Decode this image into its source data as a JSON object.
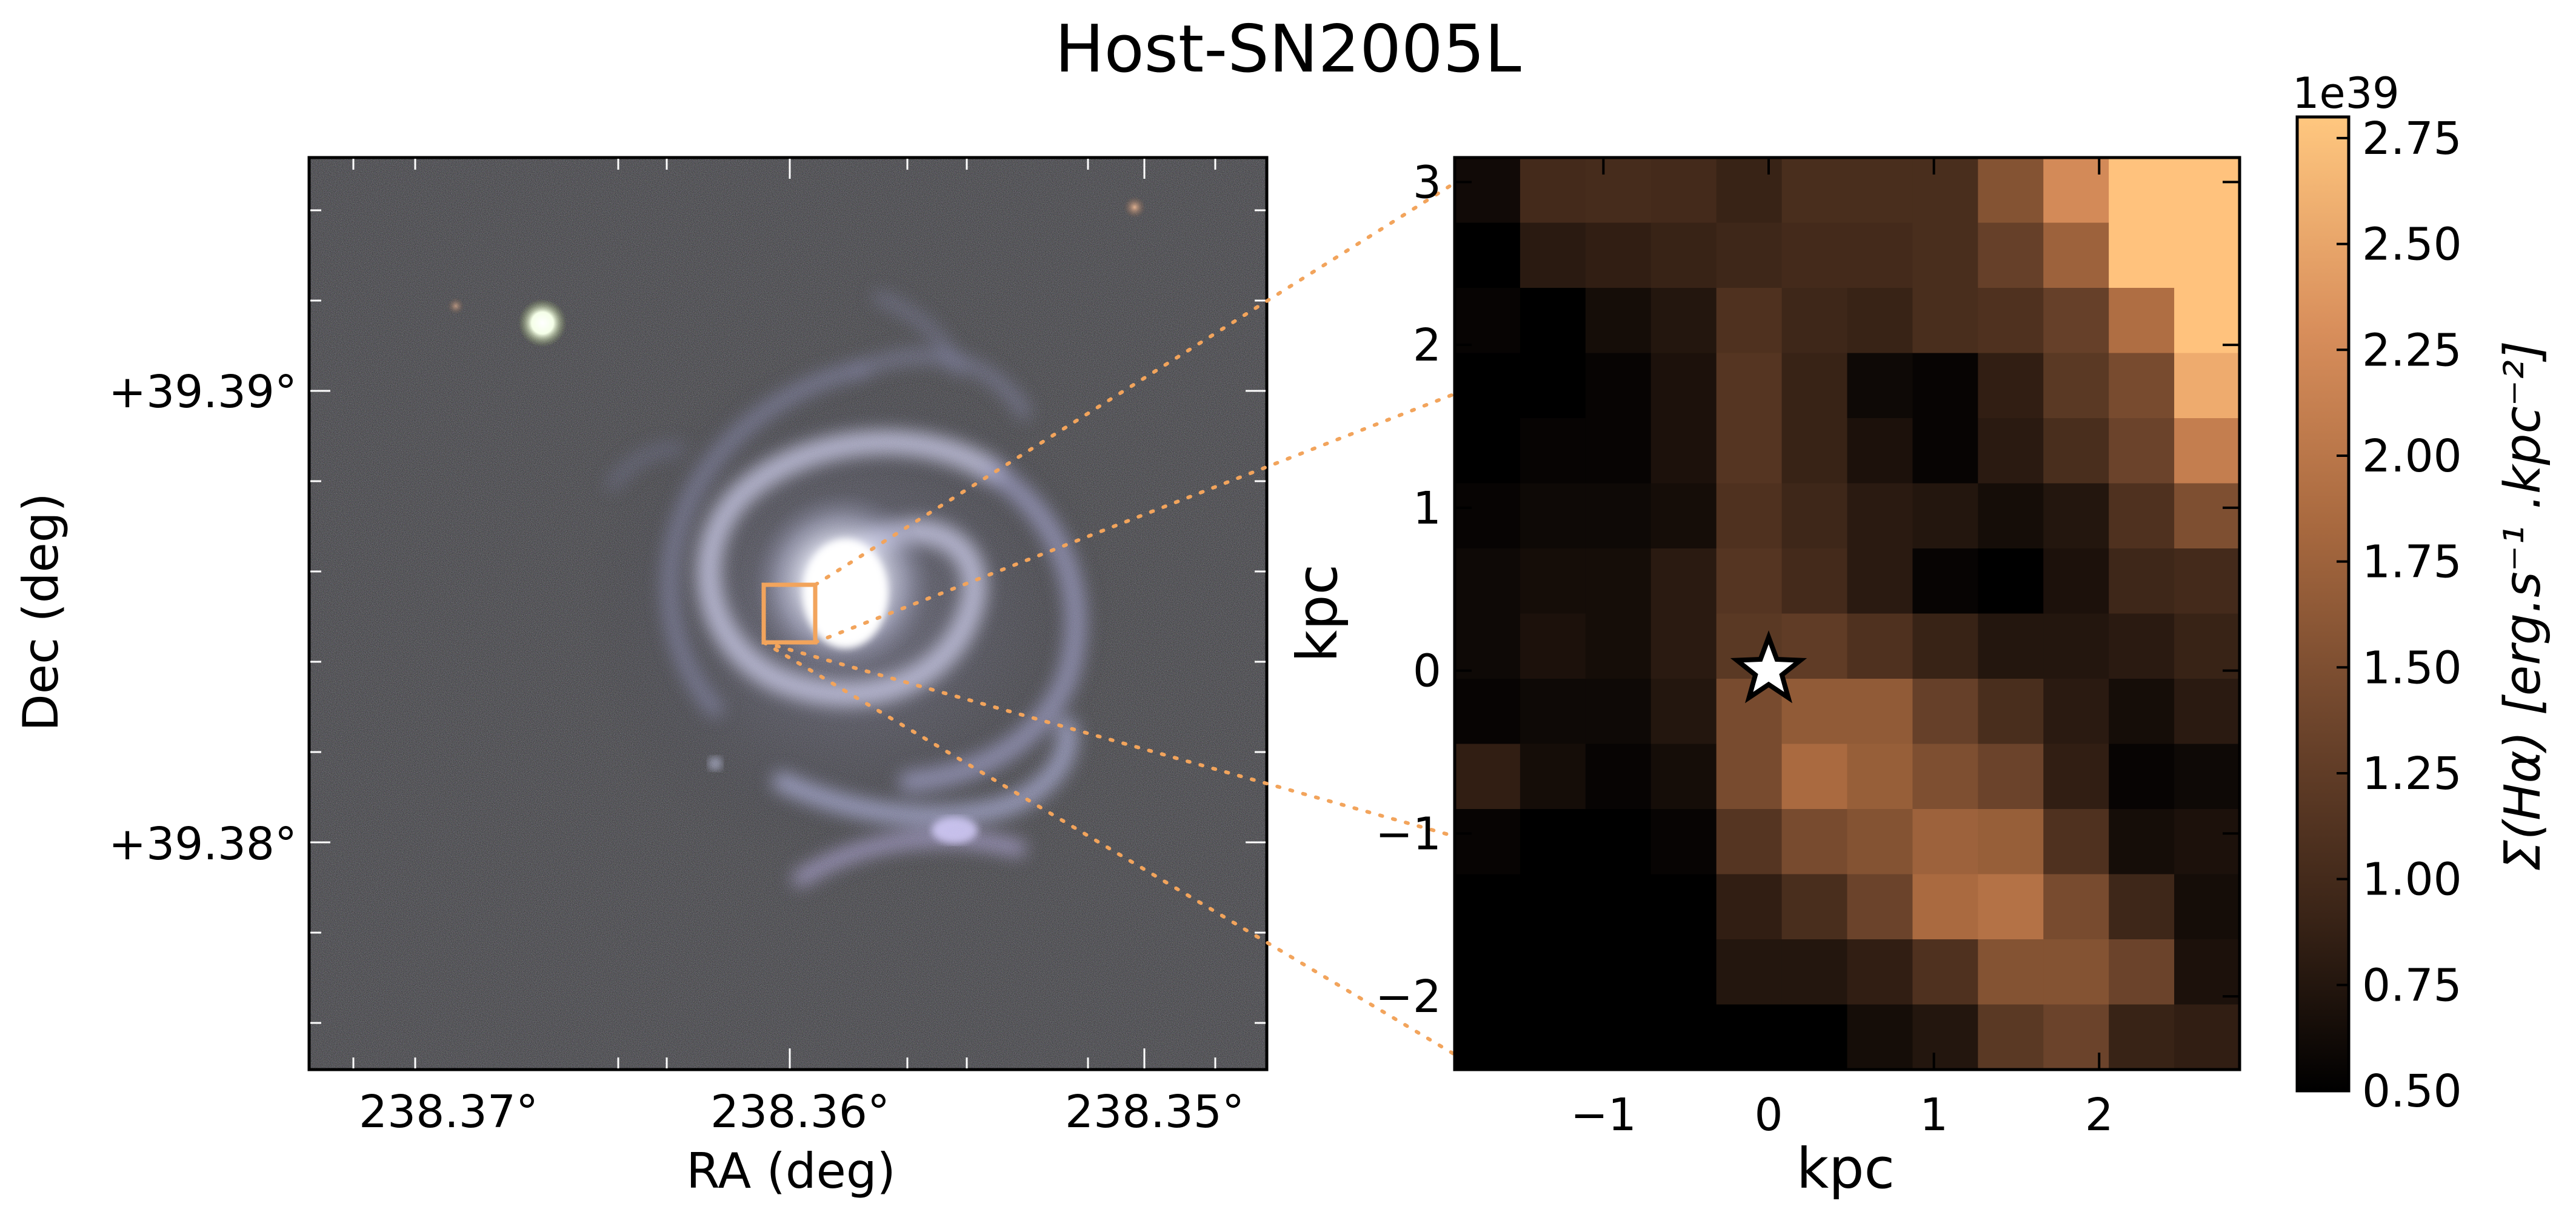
{
  "title": "Host-SN2005L",
  "colors": {
    "zoom_box": "#f2a45c",
    "colormap": [
      "#000000",
      "#3a2417",
      "#6e452c",
      "#a8693f",
      "#d88e5b",
      "#ffc27d",
      "#ffc77f"
    ]
  },
  "chart_data": [
    {
      "type": "image",
      "description_note": "",
      "xlabel": "RA (deg)",
      "ylabel": "Dec (deg)",
      "xtick_labels": [
        "238.37°",
        "238.36°",
        "238.35°"
      ],
      "ytick_labels": [
        "+39.39°",
        "+39.38°"
      ],
      "sn_box_color": "#f2a45c"
    },
    {
      "type": "heatmap",
      "xlabel": "kpc",
      "ylabel": "kpc",
      "xlim": [
        -1.9,
        2.85
      ],
      "ylim": [
        -2.45,
        3.15
      ],
      "xticks": [
        -1,
        0,
        1,
        2
      ],
      "xtick_labels": [
        "−1",
        "0",
        "1",
        "2"
      ],
      "yticks": [
        -2,
        -1,
        0,
        1,
        2,
        3
      ],
      "ytick_labels": [
        "−2",
        "−1",
        "0",
        "1",
        "2",
        "3"
      ],
      "marker": {
        "x": 0,
        "y": 0,
        "symbol": "star"
      },
      "colorbar": {
        "label": "Σ(Hα) [erg.s⁻¹ .kpc⁻²]",
        "offset_label": "1e39",
        "vmin": 0.5,
        "vmax": 2.8,
        "ticks": [
          0.5,
          0.75,
          1.0,
          1.25,
          1.5,
          1.75,
          2.0,
          2.25,
          2.5,
          2.75
        ],
        "tick_labels": [
          "0.50",
          "0.75",
          "1.00",
          "1.25",
          "1.50",
          "1.75",
          "2.00",
          "2.25",
          "2.50",
          "2.75"
        ]
      },
      "grid_values_note": "rows from top (y=3) to bottom (y=-2.4), columns from left (x=-1.9) to right (x=2.85); units of 1e39",
      "grid": [
        [
          0.62,
          1.0,
          1.02,
          1.0,
          0.9,
          1.05,
          1.05,
          1.05,
          1.55,
          2.25,
          2.75,
          2.75
        ],
        [
          0.5,
          0.8,
          0.85,
          0.9,
          0.95,
          1.0,
          1.0,
          1.05,
          1.3,
          1.75,
          2.75,
          2.75
        ],
        [
          0.55,
          0.5,
          0.65,
          0.75,
          1.1,
          0.95,
          0.9,
          1.05,
          1.1,
          1.3,
          1.9,
          2.75
        ],
        [
          0.5,
          0.5,
          0.55,
          0.7,
          1.15,
          0.9,
          0.6,
          0.55,
          0.85,
          1.2,
          1.45,
          2.55
        ],
        [
          0.5,
          0.55,
          0.55,
          0.7,
          1.15,
          0.9,
          0.7,
          0.55,
          0.8,
          1.05,
          1.35,
          2.1
        ],
        [
          0.55,
          0.6,
          0.6,
          0.65,
          1.1,
          0.95,
          0.8,
          0.75,
          0.65,
          0.75,
          1.1,
          1.5
        ],
        [
          0.6,
          0.65,
          0.65,
          0.8,
          1.15,
          1.0,
          0.8,
          0.55,
          0.5,
          0.7,
          0.95,
          1.0
        ],
        [
          0.6,
          0.7,
          0.65,
          0.8,
          1.2,
          1.25,
          1.1,
          0.9,
          0.75,
          0.75,
          0.8,
          0.9
        ],
        [
          0.55,
          0.6,
          0.6,
          0.75,
          1.45,
          1.65,
          1.65,
          1.3,
          1.05,
          0.8,
          0.65,
          0.8
        ],
        [
          0.85,
          0.65,
          0.55,
          0.65,
          1.45,
          1.85,
          1.7,
          1.5,
          1.35,
          0.85,
          0.55,
          0.6
        ],
        [
          0.55,
          0.5,
          0.5,
          0.55,
          1.15,
          1.45,
          1.55,
          1.75,
          1.7,
          1.1,
          0.65,
          0.7
        ],
        [
          0.5,
          0.5,
          0.5,
          0.5,
          0.85,
          1.05,
          1.35,
          1.85,
          1.95,
          1.45,
          0.95,
          0.65
        ],
        [
          0.5,
          0.5,
          0.5,
          0.5,
          0.75,
          0.75,
          0.85,
          1.1,
          1.55,
          1.55,
          1.35,
          0.7
        ],
        [
          0.5,
          0.5,
          0.5,
          0.5,
          0.5,
          0.5,
          0.65,
          0.75,
          1.2,
          1.35,
          0.9,
          0.85
        ]
      ]
    }
  ]
}
